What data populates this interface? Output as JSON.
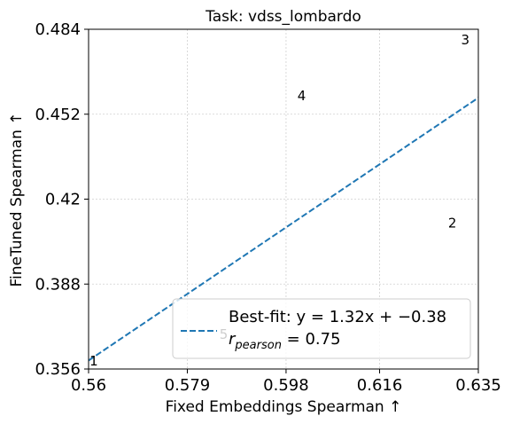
{
  "chart_data": {
    "type": "scatter",
    "title": "Task: vdss_lombardo",
    "xlabel": "Fixed Embeddings Spearman ↑",
    "ylabel": "FineTuned Spearman ↑",
    "xlim": [
      0.56,
      0.635
    ],
    "ylim": [
      0.356,
      0.484
    ],
    "xticks": [
      0.56,
      0.579,
      0.598,
      0.616,
      0.635
    ],
    "xtick_labels": [
      "0.56",
      "0.579",
      "0.598",
      "0.616",
      "0.635"
    ],
    "yticks": [
      0.356,
      0.388,
      0.42,
      0.452,
      0.484
    ],
    "ytick_labels": [
      "0.356",
      "0.388",
      "0.42",
      "0.452",
      "0.484"
    ],
    "grid": true,
    "points": [
      {
        "label": "1",
        "x": 0.561,
        "y": 0.359
      },
      {
        "label": "2",
        "x": 0.63,
        "y": 0.411
      },
      {
        "label": "3",
        "x": 0.6325,
        "y": 0.48
      },
      {
        "label": "4",
        "x": 0.601,
        "y": 0.459
      },
      {
        "label": "5",
        "x": 0.586,
        "y": 0.369
      }
    ],
    "fit_line": {
      "slope": 1.32,
      "intercept": -0.38,
      "color": "#1f77b4",
      "style": "dashed"
    },
    "legend": {
      "placement": "lower-right",
      "fit_label": "Best-fit: y = 1.32x + −0.38",
      "pearson_label": "r",
      "pearson_subscript": "pearson",
      "pearson_value": " = 0.75"
    }
  }
}
